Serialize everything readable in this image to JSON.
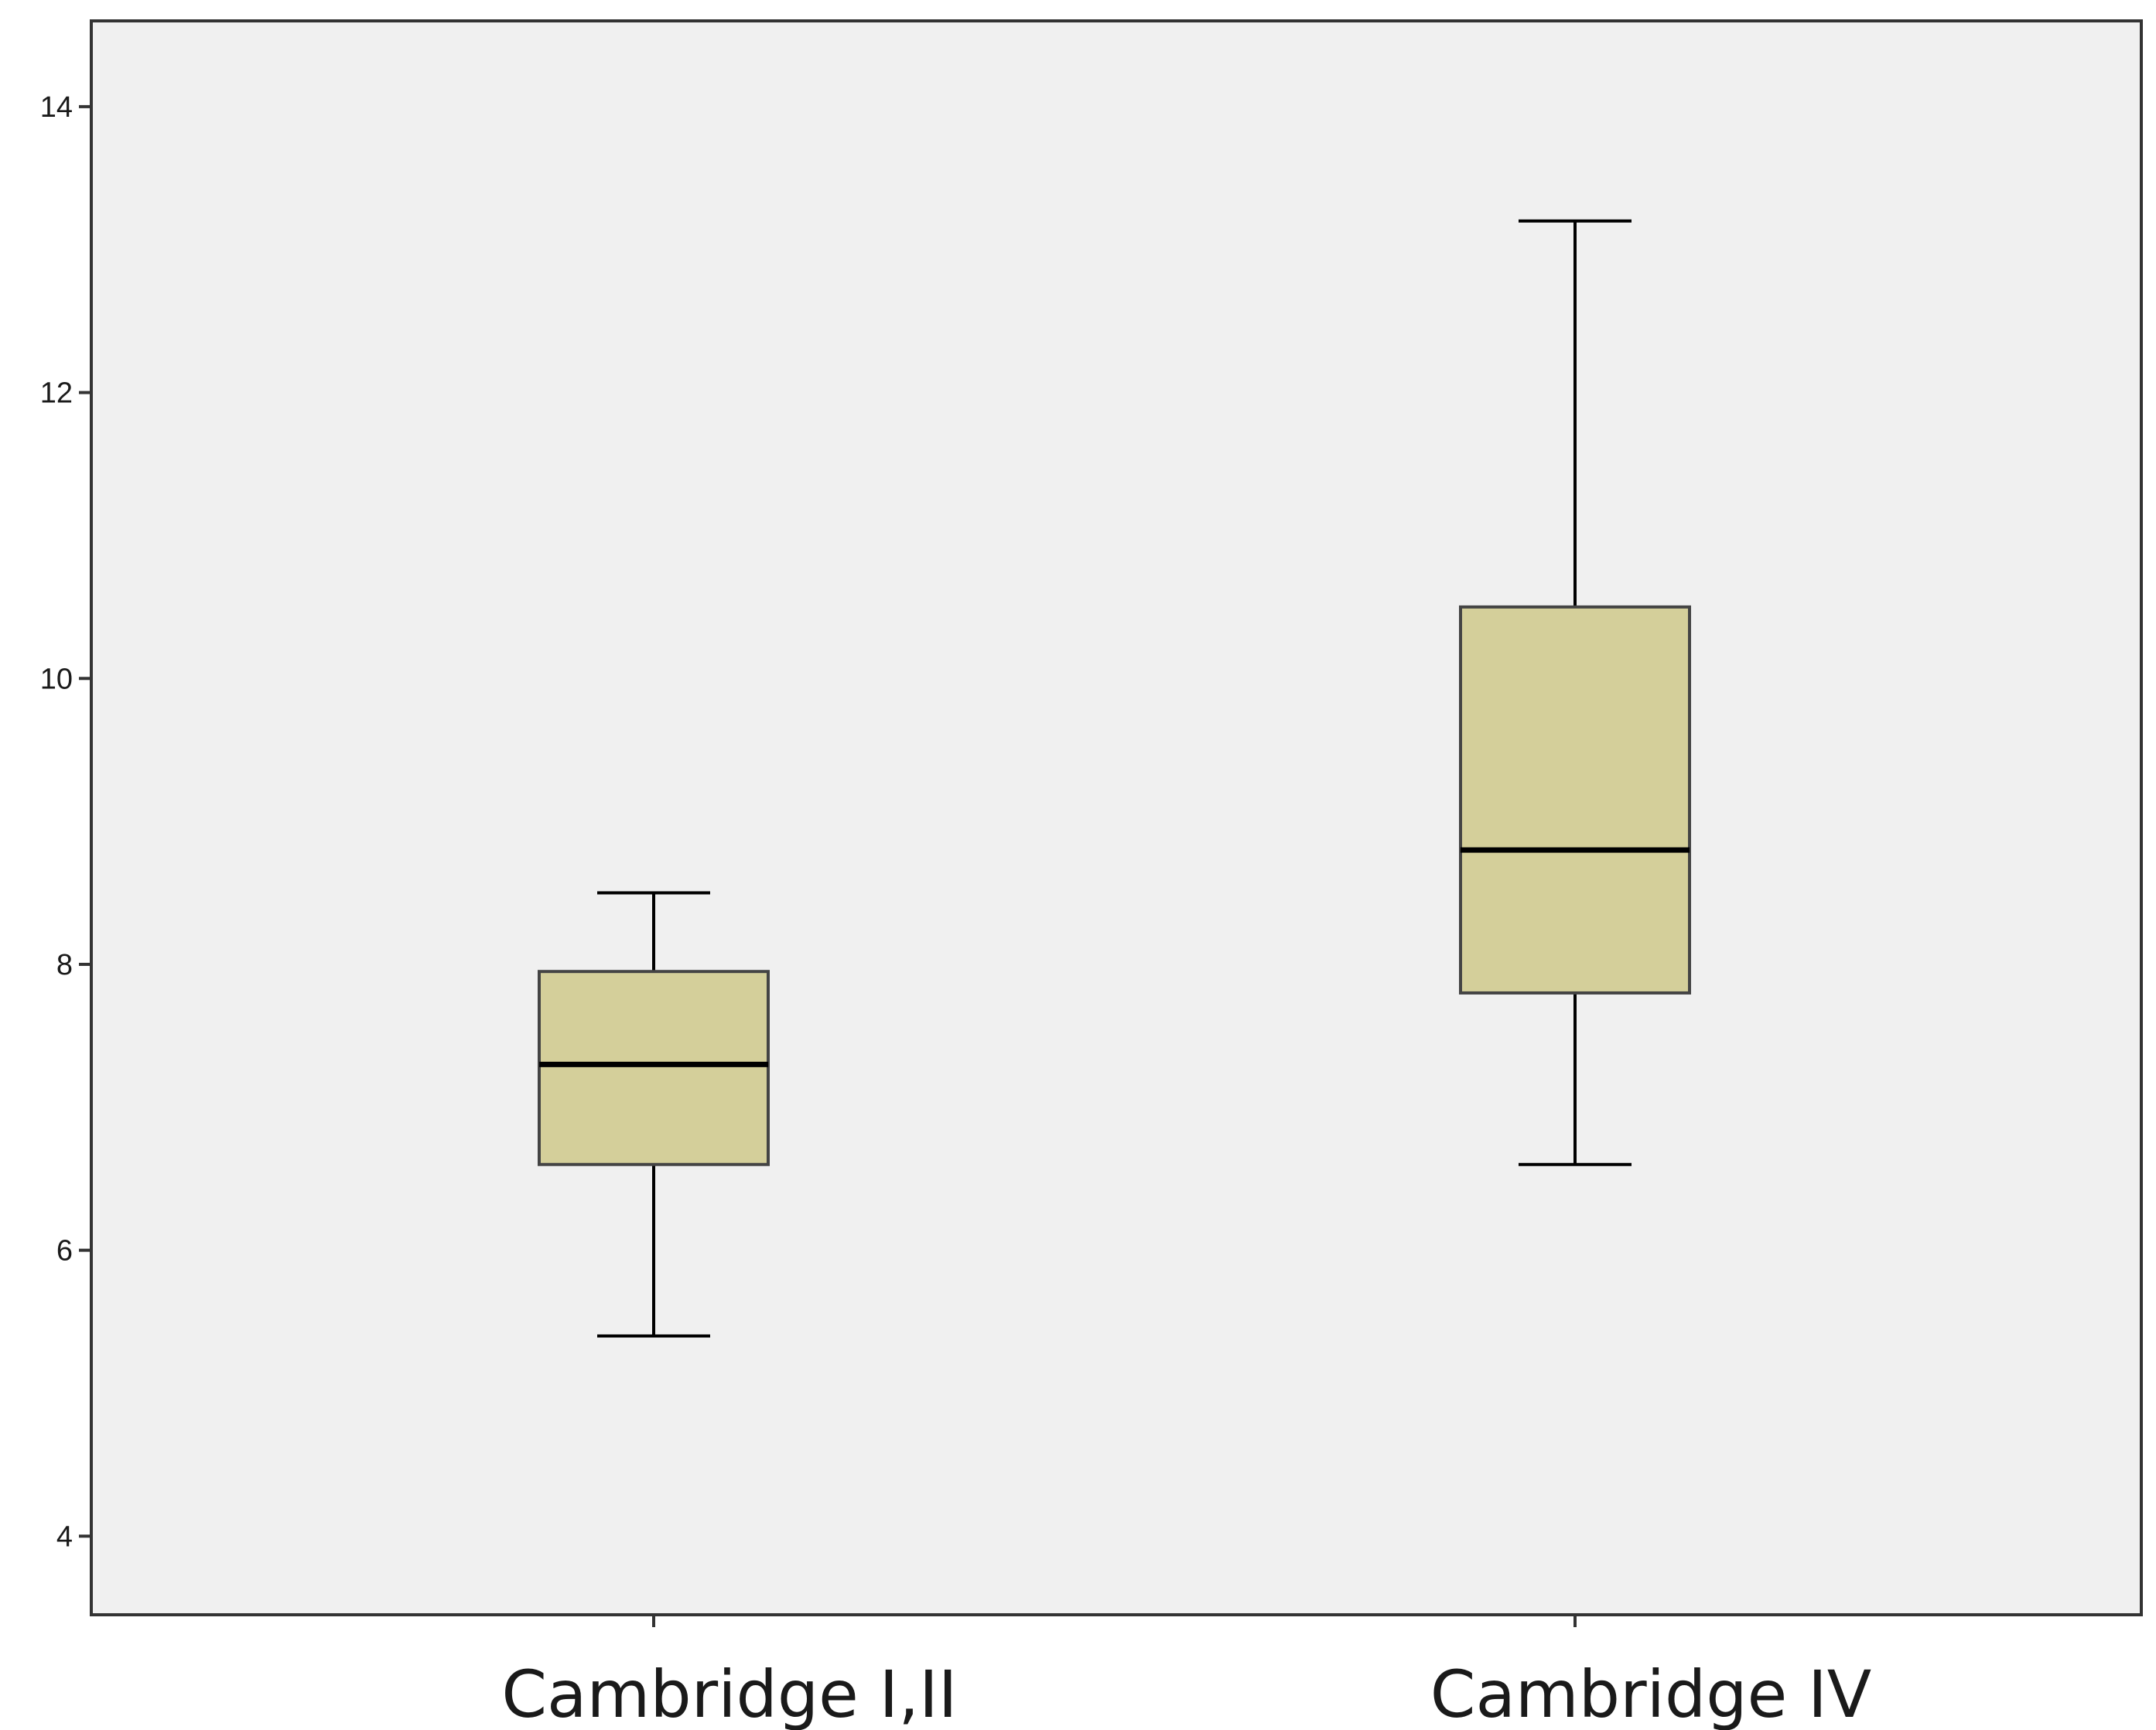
{
  "chart_data": {
    "type": "boxplot",
    "title": "",
    "xlabel": "",
    "ylabel": "",
    "ylim": [
      3.45,
      14.6
    ],
    "yticks": [
      4,
      6,
      8,
      10,
      12,
      14
    ],
    "categories": [
      "Cambridge I,II",
      "Cambridge IV"
    ],
    "boxes": [
      {
        "category": "Cambridge I,II",
        "whisker_low": 5.4,
        "q1": 6.6,
        "median": 7.3,
        "q3": 7.95,
        "whisker_high": 8.5
      },
      {
        "category": "Cambridge IV",
        "whisker_low": 6.6,
        "q1": 7.8,
        "median": 8.8,
        "q3": 10.5,
        "whisker_high": 13.2
      }
    ],
    "grid": false,
    "colors": {
      "plot_background": "#f0f0f0",
      "box_fill": "#d4cf9a",
      "line": "#000000",
      "frame": "#333333"
    }
  }
}
